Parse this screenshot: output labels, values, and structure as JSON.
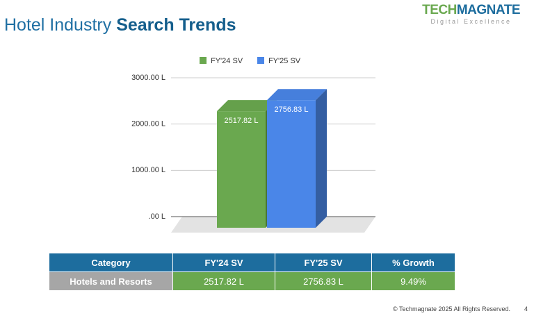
{
  "header": {
    "title_light": "Hotel Industry",
    "title_bold": "Search Trends"
  },
  "logo": {
    "part1": "TECH",
    "part2": "MAGNATE",
    "tagline": "Digital Excellence"
  },
  "chart_data": {
    "type": "bar3d",
    "categories": [
      null
    ],
    "series": [
      {
        "name": "FY'24 SV",
        "color": "#6aa84f",
        "values": [
          2517.82
        ],
        "value_labels": [
          "2517.82 L"
        ]
      },
      {
        "name": "FY'25 SV",
        "color": "#4a86e8",
        "values": [
          2756.83
        ],
        "value_labels": [
          "2756.83 L"
        ]
      }
    ],
    "ylim": [
      0,
      3000
    ],
    "yticks": [
      {
        "value": 0,
        "label": ".00 L"
      },
      {
        "value": 1000,
        "label": "1000.00 L"
      },
      {
        "value": 2000,
        "label": "2000.00 L"
      },
      {
        "value": 3000,
        "label": "3000.00 L"
      }
    ],
    "grid": true,
    "legend": "top"
  },
  "table": {
    "header": [
      "Category",
      "FY'24 SV",
      "FY'25 SV",
      "% Growth"
    ],
    "rows": [
      [
        "Hotels and Resorts",
        "2517.82 L",
        "2756.83 L",
        "9.49%"
      ]
    ]
  },
  "footer": {
    "copyright": "© Techmagnate 2025 All Rights Reserved.",
    "page": "4"
  }
}
